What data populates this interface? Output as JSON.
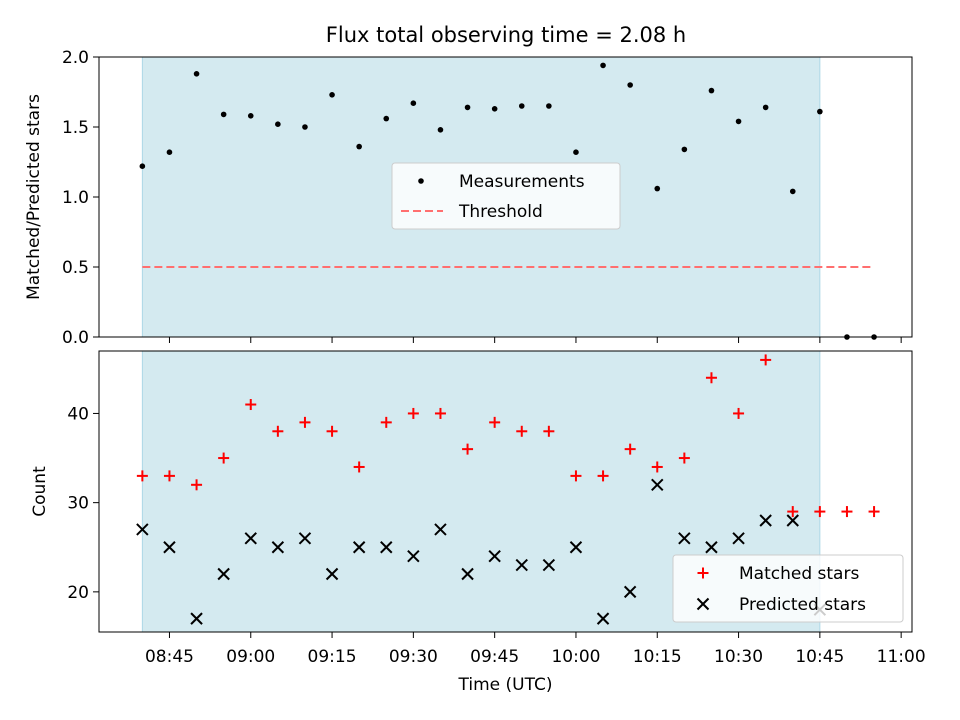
{
  "title": "Flux total observing time = 2.08 h",
  "colors": {
    "shade": "#d4eaf0",
    "measurements": "#000000",
    "threshold": "#ff6f6f",
    "matched": "#ff0000",
    "predicted": "#000000"
  },
  "chart_data": [
    {
      "type": "scatter",
      "ylabel": "Matched/Predicted stars",
      "ylim": [
        0,
        2.0
      ],
      "yticks": [
        "0.0",
        "0.5",
        "1.0",
        "1.5",
        "2.0"
      ],
      "ytick_values": [
        0,
        0.5,
        1.0,
        1.5,
        2.0
      ],
      "xlim": [
        "08:32",
        "11:02"
      ],
      "shaded_range": [
        "08:40",
        "10:45"
      ],
      "legend": {
        "position": "center",
        "entries": [
          "Measurements",
          "Threshold"
        ]
      },
      "series": [
        {
          "name": "Measurements",
          "marker": "dot",
          "x": [
            "08:40",
            "08:45",
            "08:50",
            "08:55",
            "09:00",
            "09:05",
            "09:10",
            "09:15",
            "09:20",
            "09:25",
            "09:30",
            "09:35",
            "09:40",
            "09:45",
            "09:50",
            "09:55",
            "10:00",
            "10:05",
            "10:10",
            "10:15",
            "10:20",
            "10:25",
            "10:30",
            "10:35",
            "10:40",
            "10:45",
            "10:50",
            "10:55"
          ],
          "y": [
            1.22,
            1.32,
            1.88,
            1.59,
            1.58,
            1.52,
            1.5,
            1.73,
            1.36,
            1.56,
            1.67,
            1.48,
            1.64,
            1.63,
            1.65,
            1.65,
            1.32,
            1.94,
            1.8,
            1.06,
            1.34,
            1.76,
            1.54,
            1.64,
            1.04,
            1.61,
            0.0,
            0.0
          ]
        },
        {
          "name": "Threshold",
          "marker": "dashed-line",
          "x": [
            "08:40",
            "10:55"
          ],
          "y": [
            0.5,
            0.5
          ]
        }
      ]
    },
    {
      "type": "scatter",
      "xlabel": "Time (UTC)",
      "ylabel": "Count",
      "ylim": [
        15.5,
        47.0
      ],
      "yticks": [
        "20",
        "30",
        "40"
      ],
      "ytick_values": [
        20,
        30,
        40
      ],
      "xticks": [
        "08:45",
        "09:00",
        "09:15",
        "09:30",
        "09:45",
        "10:00",
        "10:15",
        "10:30",
        "10:45",
        "11:00"
      ],
      "xlim": [
        "08:32",
        "11:02"
      ],
      "shaded_range": [
        "08:40",
        "10:45"
      ],
      "legend": {
        "position": "lower-right",
        "entries": [
          "Matched stars",
          "Predicted stars"
        ]
      },
      "series": [
        {
          "name": "Matched stars",
          "marker": "plus",
          "x": [
            "08:40",
            "08:45",
            "08:50",
            "08:55",
            "09:00",
            "09:05",
            "09:10",
            "09:15",
            "09:20",
            "09:25",
            "09:30",
            "09:35",
            "09:40",
            "09:45",
            "09:50",
            "09:55",
            "10:00",
            "10:05",
            "10:10",
            "10:15",
            "10:20",
            "10:25",
            "10:30",
            "10:35",
            "10:40",
            "10:45",
            "10:50",
            "10:55"
          ],
          "y": [
            33,
            33,
            32,
            35,
            41,
            38,
            39,
            38,
            34,
            39,
            40,
            40,
            36,
            39,
            38,
            38,
            33,
            33,
            36,
            34,
            35,
            44,
            40,
            46,
            29,
            29,
            29,
            29
          ]
        },
        {
          "name": "Predicted stars",
          "marker": "x",
          "x": [
            "08:40",
            "08:45",
            "08:50",
            "08:55",
            "09:00",
            "09:05",
            "09:10",
            "09:15",
            "09:20",
            "09:25",
            "09:30",
            "09:35",
            "09:40",
            "09:45",
            "09:50",
            "09:55",
            "10:00",
            "10:05",
            "10:10",
            "10:15",
            "10:20",
            "10:25",
            "10:30",
            "10:35",
            "10:40",
            "10:45"
          ],
          "y": [
            27,
            25,
            17,
            22,
            26,
            25,
            26,
            22,
            25,
            25,
            24,
            27,
            22,
            24,
            23,
            23,
            25,
            17,
            20,
            32,
            26,
            25,
            26,
            28,
            28,
            18
          ]
        }
      ]
    }
  ]
}
